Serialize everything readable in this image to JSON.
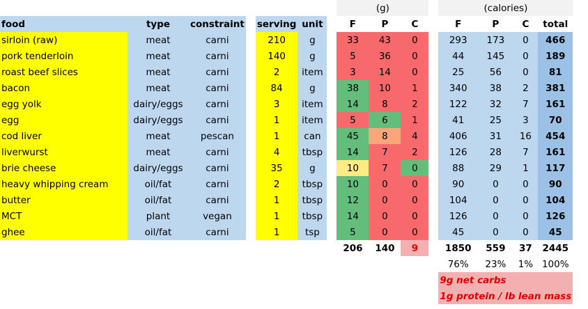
{
  "headers": {
    "grams_group": "(g)",
    "calories_group": "(calories)",
    "food": "food",
    "type": "type",
    "constraint": "constraint",
    "serving": "serving",
    "unit": "unit",
    "g_f": "F",
    "g_p": "P",
    "g_c": "C",
    "cal_f": "F",
    "cal_p": "P",
    "cal_c": "C",
    "total": "total"
  },
  "rows": [
    {
      "food": "sirloin (raw)",
      "type": "meat",
      "constraint": "carni",
      "serving": "210",
      "unit": "g",
      "gf": "33",
      "gp": "43",
      "gc": "0",
      "cf": "293",
      "cp": "173",
      "cc": "0",
      "total": "466"
    },
    {
      "food": "pork tenderloin",
      "type": "meat",
      "constraint": "carni",
      "serving": "140",
      "unit": "g",
      "gf": "5",
      "gp": "36",
      "gc": "0",
      "cf": "44",
      "cp": "145",
      "cc": "0",
      "total": "189"
    },
    {
      "food": "roast beef slices",
      "type": "meat",
      "constraint": "carni",
      "serving": "2",
      "unit": "item",
      "gf": "3",
      "gp": "14",
      "gc": "0",
      "cf": "25",
      "cp": "56",
      "cc": "0",
      "total": "81"
    },
    {
      "food": "bacon",
      "type": "meat",
      "constraint": "carni",
      "serving": "84",
      "unit": "g",
      "gf": "38",
      "gp": "10",
      "gc": "1",
      "cf": "340",
      "cp": "38",
      "cc": "2",
      "total": "381"
    },
    {
      "food": "egg yolk",
      "type": "dairy/eggs",
      "constraint": "carni",
      "serving": "3",
      "unit": "item",
      "gf": "14",
      "gp": "8",
      "gc": "2",
      "cf": "122",
      "cp": "32",
      "cc": "7",
      "total": "161"
    },
    {
      "food": "egg",
      "type": "dairy/eggs",
      "constraint": "carni",
      "serving": "1",
      "unit": "item",
      "gf": "5",
      "gp": "6",
      "gc": "1",
      "cf": "41",
      "cp": "25",
      "cc": "3",
      "total": "70"
    },
    {
      "food": "cod liver",
      "type": "meat",
      "constraint": "pescan",
      "serving": "1",
      "unit": "can",
      "gf": "45",
      "gp": "8",
      "gc": "4",
      "cf": "406",
      "cp": "31",
      "cc": "16",
      "total": "454"
    },
    {
      "food": "liverwurst",
      "type": "meat",
      "constraint": "carni",
      "serving": "4",
      "unit": "tbsp",
      "gf": "14",
      "gp": "7",
      "gc": "2",
      "cf": "126",
      "cp": "28",
      "cc": "7",
      "total": "161"
    },
    {
      "food": "brie cheese",
      "type": "dairy/eggs",
      "constraint": "carni",
      "serving": "35",
      "unit": "g",
      "gf": "10",
      "gp": "7",
      "gc": "0",
      "cf": "88",
      "cp": "29",
      "cc": "1",
      "total": "117"
    },
    {
      "food": "heavy whipping cream",
      "type": "oil/fat",
      "constraint": "carni",
      "serving": "2",
      "unit": "tbsp",
      "gf": "10",
      "gp": "0",
      "gc": "0",
      "cf": "90",
      "cp": "0",
      "cc": "0",
      "total": "90"
    },
    {
      "food": "butter",
      "type": "oil/fat",
      "constraint": "carni",
      "serving": "1",
      "unit": "tbsp",
      "gf": "12",
      "gp": "0",
      "gc": "0",
      "cf": "104",
      "cp": "0",
      "cc": "0",
      "total": "104"
    },
    {
      "food": "MCT",
      "type": "plant",
      "constraint": "vegan",
      "serving": "1",
      "unit": "tbsp",
      "gf": "14",
      "gp": "0",
      "gc": "0",
      "cf": "126",
      "cp": "0",
      "cc": "0",
      "total": "126"
    },
    {
      "food": "ghee",
      "type": "oil/fat",
      "constraint": "carni",
      "serving": "1",
      "unit": "tsp",
      "gf": "5",
      "gp": "0",
      "gc": "0",
      "cf": "45",
      "cp": "0",
      "cc": "0",
      "total": "45"
    }
  ],
  "totals": {
    "gf": "206",
    "gp": "140",
    "gc": "9",
    "cf": "1850",
    "cp": "559",
    "cc": "37",
    "total": "2445"
  },
  "percents": {
    "f": "76%",
    "p": "23%",
    "c": "1%",
    "total": "100%"
  },
  "notes": [
    "9g net carbs",
    "1g protein / lb lean mass"
  ],
  "heat_colors": {
    "red": "#f8696b",
    "green": "#63be7b",
    "orange": "#f8a77a",
    "yellow": "#ffeb84"
  }
}
